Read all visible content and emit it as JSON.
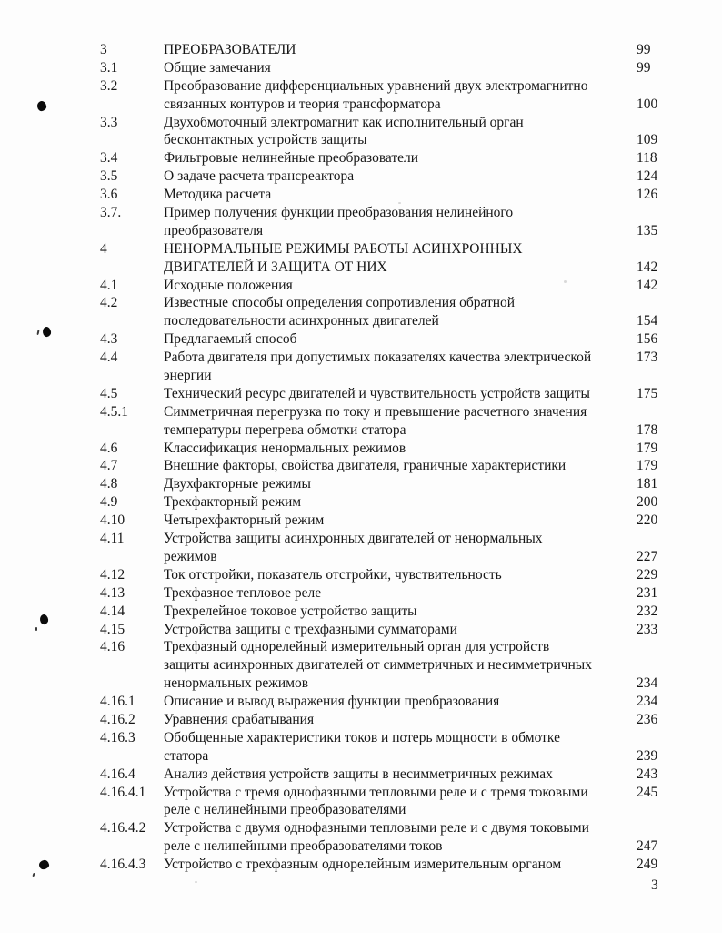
{
  "toc": {
    "rows": [
      {
        "num": "3",
        "title": "ПРЕОБРАЗОВАТЕЛИ",
        "page": "99"
      },
      {
        "num": "3.1",
        "title": "Общие замечания",
        "page": "99"
      },
      {
        "num": "3.2",
        "title": "Преобразование дифференциальных уравнений двух электромагнитно",
        "page": ""
      },
      {
        "num": "",
        "title": "связанных контуров и теория трансформатора",
        "page": "100"
      },
      {
        "num": "3.3",
        "title": "Двухобмоточный электромагнит как исполнительный орган",
        "page": ""
      },
      {
        "num": "",
        "title": "бесконтактных устройств защиты",
        "page": "109"
      },
      {
        "num": "3.4",
        "title": "Фильтровые нелинейные преобразователи",
        "page": "118"
      },
      {
        "num": "3.5",
        "title": "О задаче расчета трансреактора",
        "page": "124"
      },
      {
        "num": "3.6",
        "title": "Методика расчета",
        "page": "126"
      },
      {
        "num": "3.7.",
        "title": "Пример получения функции преобразования нелинейного",
        "page": ""
      },
      {
        "num": "",
        "title": "преобразователя",
        "page": "135"
      },
      {
        "num": "4",
        "title": "НЕНОРМАЛЬНЫЕ РЕЖИМЫ РАБОТЫ АСИНХРОННЫХ",
        "page": ""
      },
      {
        "num": "",
        "title": "ДВИГАТЕЛЕЙ И ЗАЩИТА ОТ НИХ",
        "page": "142"
      },
      {
        "num": "4.1",
        "title": "Исходные положения",
        "page": "142"
      },
      {
        "num": "4.2",
        "title": "Известные способы определения сопротивления обратной",
        "page": ""
      },
      {
        "num": "",
        "title": "последовательности асинхронных двигателей",
        "page": "154"
      },
      {
        "num": "4.3",
        "title": "Предлагаемый способ",
        "page": "156"
      },
      {
        "num": "4.4",
        "title": "Работа двигателя при допустимых показателях качества электрической",
        "page": "173"
      },
      {
        "num": "",
        "title": "энергии",
        "page": ""
      },
      {
        "num": "4.5",
        "title": "Технический ресурс двигателей и чувствительность устройств защиты",
        "page": "175"
      },
      {
        "num": "4.5.1",
        "title": "Симметричная перегрузка по току и превышение расчетного значения",
        "page": ""
      },
      {
        "num": "",
        "title": "температуры перегрева обмотки статора",
        "page": "178"
      },
      {
        "num": "4.6",
        "title": "Классификация ненормальных режимов",
        "page": "179"
      },
      {
        "num": "4.7",
        "title": "Внешние факторы, свойства двигателя, граничные характеристики",
        "page": "179"
      },
      {
        "num": "4.8",
        "title": "Двухфакторные режимы",
        "page": "181"
      },
      {
        "num": "4.9",
        "title": "Трехфакторный режим",
        "page": "200"
      },
      {
        "num": "4.10",
        "title": "Четырехфакторный режим",
        "page": "220"
      },
      {
        "num": "4.11",
        "title": "Устройства защиты асинхронных двигателей от ненормальных",
        "page": ""
      },
      {
        "num": "",
        "title": "режимов",
        "page": "227"
      },
      {
        "num": "4.12",
        "title": "Ток отстройки, показатель отстройки, чувствительность",
        "page": "229"
      },
      {
        "num": "4.13",
        "title": "Трехфазное тепловое реле",
        "page": "231"
      },
      {
        "num": "4.14",
        "title": "Трехрелейное токовое устройство защиты",
        "page": "232"
      },
      {
        "num": "4.15",
        "title": "Устройства защиты с трехфазными сумматорами",
        "page": "233"
      },
      {
        "num": "4.16",
        "title": "Трехфазный однорелейный измерительный орган для устройств",
        "page": ""
      },
      {
        "num": "",
        "title": "защиты асинхронных двигателей от симметричных и несимметричных",
        "page": ""
      },
      {
        "num": "",
        "title": "ненормальных режимов",
        "page": "234"
      },
      {
        "num": "4.16.1",
        "title": "Описание и вывод выражения функции преобразования",
        "page": "234"
      },
      {
        "num": "4.16.2",
        "title": "Уравнения срабатывания",
        "page": "236"
      },
      {
        "num": "4.16.3",
        "title": "Обобщенные характеристики токов и потерь мощности в обмотке",
        "page": ""
      },
      {
        "num": "",
        "title": "статора",
        "page": "239"
      },
      {
        "num": "4.16.4",
        "title": "Анализ действия устройств защиты в несимметричных режимах",
        "page": "243"
      },
      {
        "num": "4.16.4.1",
        "title": "Устройства с тремя однофазными тепловыми реле и с тремя токовыми",
        "page": "245"
      },
      {
        "num": "",
        "title": "реле с нелинейными преобразователями",
        "page": ""
      },
      {
        "num": "4.16.4.2",
        "title": "Устройства с двумя однофазными тепловыми реле и с двумя токовыми",
        "page": ""
      },
      {
        "num": "",
        "title": "реле с нелинейными преобразователями токов",
        "page": "247"
      },
      {
        "num": "4.16.4.3",
        "title": "Устройство с трехфазным однорелейным измерительным органом",
        "page": "249"
      }
    ]
  },
  "footer": {
    "page_number": "3"
  },
  "colors": {
    "paper": "#fdfdfd",
    "ink": "#161616"
  }
}
